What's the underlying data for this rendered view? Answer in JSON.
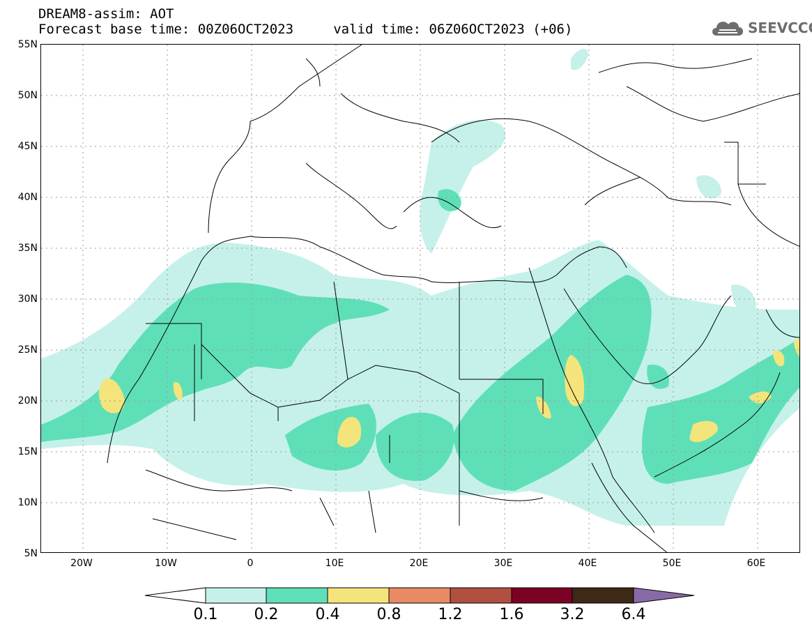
{
  "header": {
    "line1": "DREAM8-assim: AOT",
    "line2": "Forecast base time: 00Z06OCT2023     valid time: 06Z06OCT2023 (+06)"
  },
  "logo": {
    "text": "SEEVCCC"
  },
  "map": {
    "lat_labels": [
      "55N",
      "50N",
      "45N",
      "40N",
      "35N",
      "30N",
      "25N",
      "20N",
      "15N",
      "10N",
      "5N"
    ],
    "lon_labels": [
      "20W",
      "10W",
      "0",
      "10E",
      "20E",
      "30E",
      "40E",
      "50E",
      "60E"
    ],
    "lon_range": [
      -25,
      65
    ],
    "lat_range": [
      5,
      55
    ]
  },
  "colorbar": {
    "labels": [
      "0.1",
      "0.2",
      "0.4",
      "0.8",
      "1.2",
      "1.6",
      "3.2",
      "6.4"
    ],
    "colors": {
      "below": "#ffffff",
      "c1": "#c5f1ea",
      "c2": "#5fdfb8",
      "c3": "#f4e47c",
      "c4": "#e88b64",
      "c5": "#b14f41",
      "c6": "#7a0225",
      "c7": "#3e2816",
      "above": "#8a6aa6"
    }
  }
}
